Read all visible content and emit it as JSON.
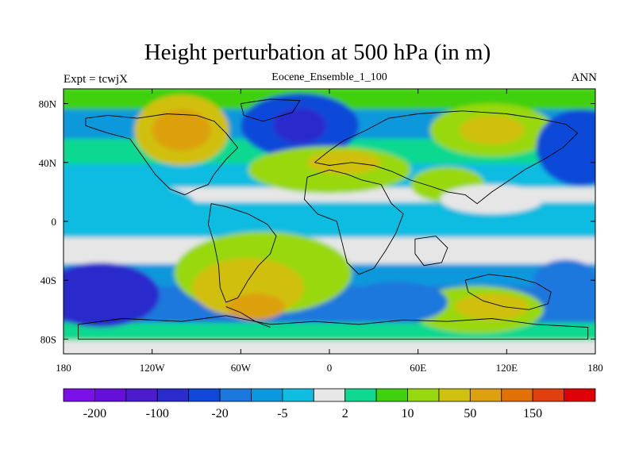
{
  "header": {
    "title": "Height perturbation at 500 hPa (in m)",
    "left_label": "Expt = tcwjX",
    "center_label": "Eocene_Ensemble_1_100",
    "right_label": "ANN"
  },
  "axes": {
    "lon_ticks": [
      {
        "value": -180,
        "label": "180"
      },
      {
        "value": -120,
        "label": "120W"
      },
      {
        "value": -60,
        "label": "60W"
      },
      {
        "value": 0,
        "label": "0"
      },
      {
        "value": 60,
        "label": "60E"
      },
      {
        "value": 120,
        "label": "120E"
      },
      {
        "value": 180,
        "label": "180"
      }
    ],
    "lat_ticks": [
      {
        "value": 80,
        "label": "80N"
      },
      {
        "value": 40,
        "label": "40N"
      },
      {
        "value": 0,
        "label": "0"
      },
      {
        "value": -40,
        "label": "40S"
      },
      {
        "value": -80,
        "label": "80S"
      }
    ],
    "lon_range": [
      -180,
      180
    ],
    "lat_range": [
      -90,
      90
    ]
  },
  "colorbar": {
    "colors": [
      "#7c10e8",
      "#6410d8",
      "#4c1ccc",
      "#2c2ccc",
      "#1048d8",
      "#1c78dc",
      "#0c98dc",
      "#10bce0",
      "#e6e6e6",
      "#10d890",
      "#40d010",
      "#98d810",
      "#d0c010",
      "#dca010",
      "#e07008",
      "#e04010",
      "#e00008"
    ],
    "labels": [
      {
        "boundary": 1,
        "text": "-200"
      },
      {
        "boundary": 3,
        "text": "-100"
      },
      {
        "boundary": 5,
        "text": "-20"
      },
      {
        "boundary": 7,
        "text": "-5"
      },
      {
        "boundary": 9,
        "text": "2"
      },
      {
        "boundary": 11,
        "text": "10"
      },
      {
        "boundary": 13,
        "text": "50"
      },
      {
        "boundary": 15,
        "text": "150"
      }
    ]
  },
  "field_anomalies": [
    {
      "lon": -100,
      "lat": 62,
      "rlon": 32,
      "rlat": 24,
      "level": 12
    },
    {
      "lon": -100,
      "lat": 62,
      "rlon": 20,
      "rlat": 14,
      "level": 13
    },
    {
      "lon": -20,
      "lat": 65,
      "rlon": 40,
      "rlat": 22,
      "level": 4
    },
    {
      "lon": -20,
      "lat": 65,
      "rlon": 18,
      "rlat": 12,
      "level": 3
    },
    {
      "lon": 110,
      "lat": 62,
      "rlon": 42,
      "rlat": 18,
      "level": 11
    },
    {
      "lon": 110,
      "lat": 62,
      "rlon": 22,
      "rlat": 10,
      "level": 12
    },
    {
      "lon": 170,
      "lat": 50,
      "rlon": 30,
      "rlat": 26,
      "level": 4
    },
    {
      "lon": 0,
      "lat": 35,
      "rlon": 55,
      "rlat": 16,
      "level": 11
    },
    {
      "lon": 10,
      "lat": 40,
      "rlon": 25,
      "rlat": 8,
      "level": 12
    },
    {
      "lon": 80,
      "lat": 25,
      "rlon": 25,
      "rlat": 12,
      "level": 11
    },
    {
      "lon": -45,
      "lat": -35,
      "rlon": 60,
      "rlat": 28,
      "level": 11
    },
    {
      "lon": -55,
      "lat": -45,
      "rlon": 38,
      "rlat": 20,
      "level": 12
    },
    {
      "lon": -50,
      "lat": -58,
      "rlon": 20,
      "rlat": 9,
      "level": 13
    },
    {
      "lon": 100,
      "lat": -60,
      "rlon": 45,
      "rlat": 16,
      "level": 11
    },
    {
      "lon": 110,
      "lat": -58,
      "rlon": 25,
      "rlat": 9,
      "level": 12
    },
    {
      "lon": -155,
      "lat": -50,
      "rlon": 40,
      "rlat": 22,
      "level": 3
    },
    {
      "lon": 45,
      "lat": -55,
      "rlon": 35,
      "rlat": 14,
      "level": 5
    },
    {
      "lon": 160,
      "lat": -40,
      "rlon": 22,
      "rlat": 14,
      "level": 5
    },
    {
      "lon": 110,
      "lat": 15,
      "rlon": 35,
      "rlat": 10,
      "level": 8
    },
    {
      "lon": -150,
      "lat": 10,
      "rlon": 60,
      "rlat": 18,
      "level": 7
    }
  ]
}
